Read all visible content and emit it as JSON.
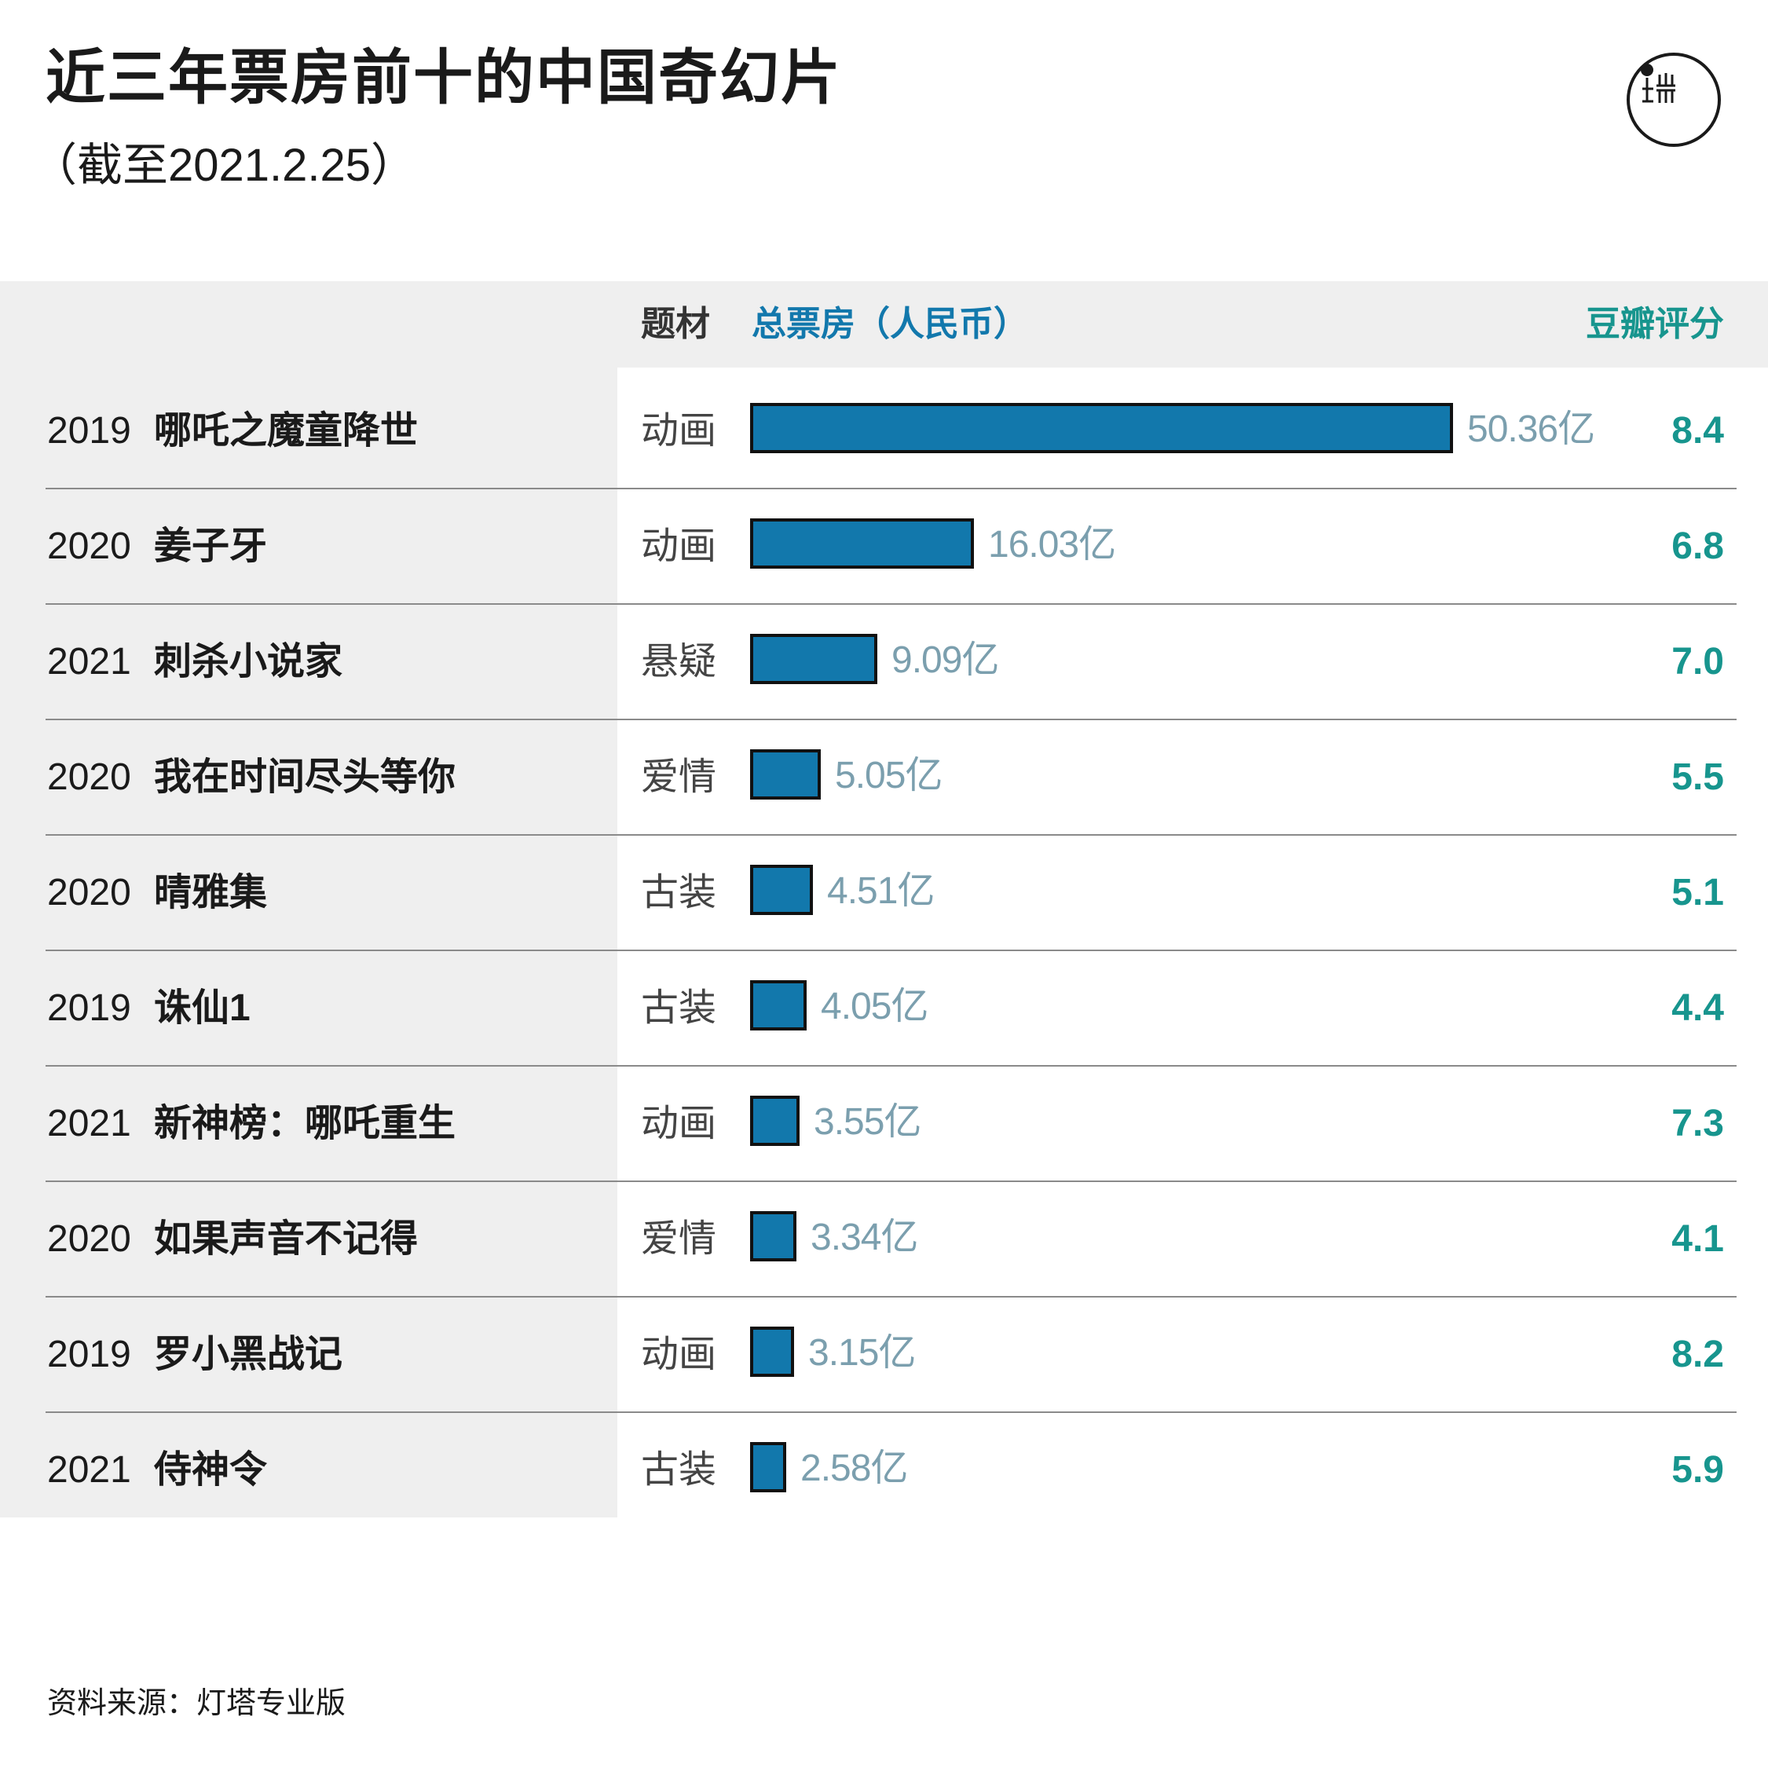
{
  "header": {
    "title": "近三年票房前十的中国奇幻片",
    "subtitle": "（截至2021.2.25）"
  },
  "table_header": {
    "genre": "题材",
    "box_office": "总票房（人民币）",
    "rating": "豆瓣评分"
  },
  "colors": {
    "bar": "#1278ac",
    "bar_border": "#111111",
    "rating": "#17958e",
    "bar_label": "#7b9fae",
    "panel": "#efefef"
  },
  "logo": {
    "icon": "logo-icon"
  },
  "footer": {
    "source": "资料来源：灯塔专业版"
  },
  "chart_data": {
    "type": "bar",
    "orientation": "horizontal",
    "title": "近三年票房前十的中国奇幻片",
    "subtitle": "（截至2021.2.25）",
    "unit": "亿",
    "rows": [
      {
        "year": "2019",
        "film": "哪吒之魔童降世",
        "genre": "动画",
        "box_office": 50.36,
        "box_office_label": "50.36亿",
        "rating": "8.4"
      },
      {
        "year": "2020",
        "film": "姜子牙",
        "genre": "动画",
        "box_office": 16.03,
        "box_office_label": "16.03亿",
        "rating": "6.8"
      },
      {
        "year": "2021",
        "film": "刺杀小说家",
        "genre": "悬疑",
        "box_office": 9.09,
        "box_office_label": "9.09亿",
        "rating": "7.0"
      },
      {
        "year": "2020",
        "film": "我在时间尽头等你",
        "genre": "爱情",
        "box_office": 5.05,
        "box_office_label": "5.05亿",
        "rating": "5.5"
      },
      {
        "year": "2020",
        "film": "晴雅集",
        "genre": "古装",
        "box_office": 4.51,
        "box_office_label": "4.51亿",
        "rating": "5.1"
      },
      {
        "year": "2019",
        "film": "诛仙1",
        "genre": "古装",
        "box_office": 4.05,
        "box_office_label": "4.05亿",
        "rating": "4.4"
      },
      {
        "year": "2021",
        "film": "新神榜：哪吒重生",
        "genre": "动画",
        "box_office": 3.55,
        "box_office_label": "3.55亿",
        "rating": "7.3"
      },
      {
        "year": "2020",
        "film": "如果声音不记得",
        "genre": "爱情",
        "box_office": 3.34,
        "box_office_label": "3.34亿",
        "rating": "4.1"
      },
      {
        "year": "2019",
        "film": "罗小黑战记",
        "genre": "动画",
        "box_office": 3.15,
        "box_office_label": "3.15亿",
        "rating": "8.2"
      },
      {
        "year": "2021",
        "film": "侍神令",
        "genre": "古装",
        "box_office": 2.58,
        "box_office_label": "2.58亿",
        "rating": "5.9"
      }
    ]
  }
}
